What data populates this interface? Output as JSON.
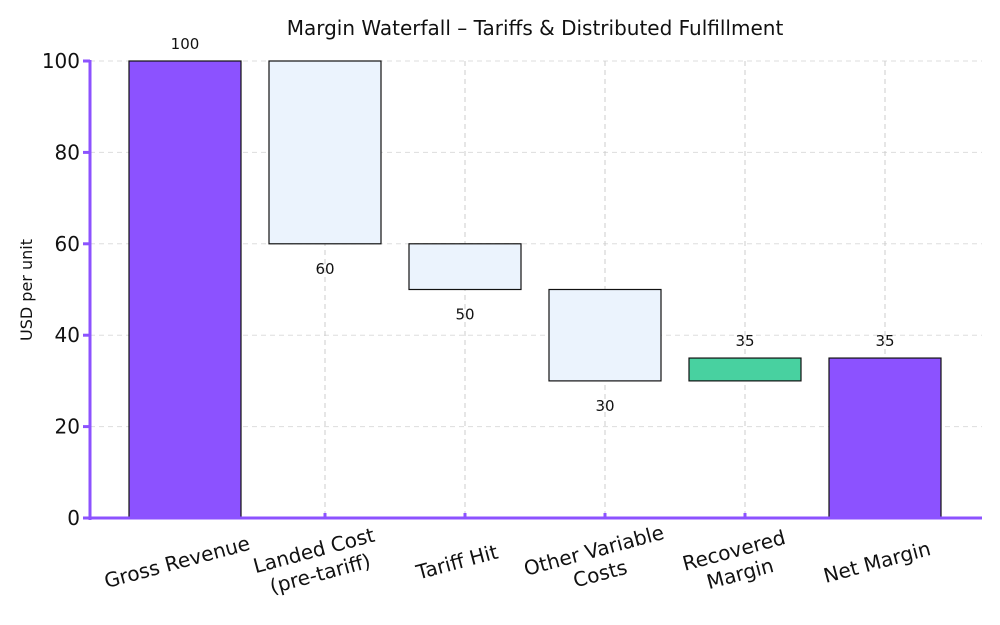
{
  "chart_data": {
    "type": "bar",
    "subtype": "waterfall",
    "title": "Margin Waterfall – Tariffs & Distributed Fulfillment",
    "xlabel": "",
    "ylabel": "USD per unit",
    "ylim": [
      0,
      100
    ],
    "yticks": [
      0,
      20,
      40,
      60,
      80,
      100
    ],
    "grid": true,
    "categories": [
      {
        "line1": "Gross Revenue",
        "line2": ""
      },
      {
        "line1": "Landed Cost",
        "line2": "(pre-tariff)"
      },
      {
        "line1": "Tariff Hit",
        "line2": ""
      },
      {
        "line1": "Other Variable",
        "line2": "Costs"
      },
      {
        "line1": "Recovered",
        "line2": "Margin"
      },
      {
        "line1": "Net Margin",
        "line2": ""
      }
    ],
    "bars": [
      {
        "kind": "total",
        "start": 0,
        "end": 100,
        "label": "100",
        "label_side": "above"
      },
      {
        "kind": "decrease",
        "start": 100,
        "end": 60,
        "label": "60",
        "label_side": "below"
      },
      {
        "kind": "decrease",
        "start": 60,
        "end": 50,
        "label": "50",
        "label_side": "below"
      },
      {
        "kind": "decrease",
        "start": 50,
        "end": 30,
        "label": "30",
        "label_side": "below"
      },
      {
        "kind": "increase",
        "start": 30,
        "end": 35,
        "label": "35",
        "label_side": "above"
      },
      {
        "kind": "total",
        "start": 0,
        "end": 35,
        "label": "35",
        "label_side": "above"
      }
    ],
    "colors": {
      "total": "#8c52ff",
      "decrease": "#ebf3fd",
      "increase": "#48d1a0",
      "axis": "#8c52ff",
      "edge": "#111111",
      "grid": "#dddddd"
    }
  }
}
